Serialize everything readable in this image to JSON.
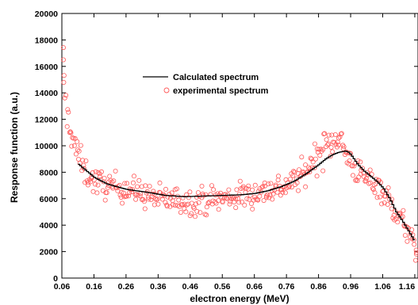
{
  "chart_data": {
    "type": "scatter",
    "xlabel": "electron energy (MeV)",
    "ylabel": "Response function (a.u.)",
    "xlim": [
      0.06,
      1.17
    ],
    "ylim": [
      0,
      20000
    ],
    "x_ticks": [
      "0.06",
      "0.16",
      "0.26",
      "0.36",
      "0.46",
      "0.56",
      "0.66",
      "0.76",
      "0.86",
      "0.96",
      "1.06",
      "1.16"
    ],
    "y_ticks": [
      "0",
      "2000",
      "4000",
      "6000",
      "8000",
      "10000",
      "12000",
      "14000",
      "16000",
      "18000",
      "20000"
    ],
    "grid": false,
    "legend_position": "upper-center",
    "series": [
      {
        "name": "Calculated spectrum",
        "style": "step-line",
        "color": "#000000",
        "x": [
          0.11,
          0.13,
          0.16,
          0.2,
          0.26,
          0.32,
          0.38,
          0.44,
          0.5,
          0.56,
          0.62,
          0.66,
          0.7,
          0.74,
          0.78,
          0.82,
          0.86,
          0.88,
          0.9,
          0.92,
          0.94,
          0.95,
          0.96,
          0.98,
          1.0,
          1.02,
          1.04,
          1.06,
          1.08,
          1.1,
          1.12,
          1.14,
          1.16
        ],
        "y": [
          8600,
          8200,
          7600,
          7100,
          6700,
          6500,
          6250,
          6150,
          6200,
          6250,
          6300,
          6400,
          6600,
          6900,
          7300,
          7900,
          8600,
          9000,
          9300,
          9500,
          9600,
          9550,
          9300,
          8600,
          8100,
          7700,
          7300,
          6800,
          6000,
          5000,
          4300,
          3500,
          2700
        ]
      },
      {
        "name": "experimental spectrum",
        "style": "open-circle-markers",
        "color": "#ff5a5a",
        "point_count": 430,
        "x": [
          0.06,
          0.07,
          0.08,
          0.09,
          0.1,
          0.11,
          0.12,
          0.13,
          0.16,
          0.2,
          0.26,
          0.32,
          0.36,
          0.46,
          0.56,
          0.66,
          0.76,
          0.82,
          0.86,
          0.9,
          0.92,
          0.94,
          0.96,
          0.98,
          1.0,
          1.04,
          1.06,
          1.1,
          1.14,
          1.16,
          1.17
        ],
        "y": [
          16900,
          13500,
          12000,
          11000,
          10000,
          9300,
          8800,
          8100,
          7300,
          7000,
          6800,
          6300,
          6000,
          5800,
          6000,
          6400,
          7000,
          8000,
          9500,
          10200,
          11000,
          9600,
          8800,
          8100,
          7600,
          7200,
          6600,
          5000,
          3500,
          2200,
          1500
        ]
      }
    ]
  }
}
